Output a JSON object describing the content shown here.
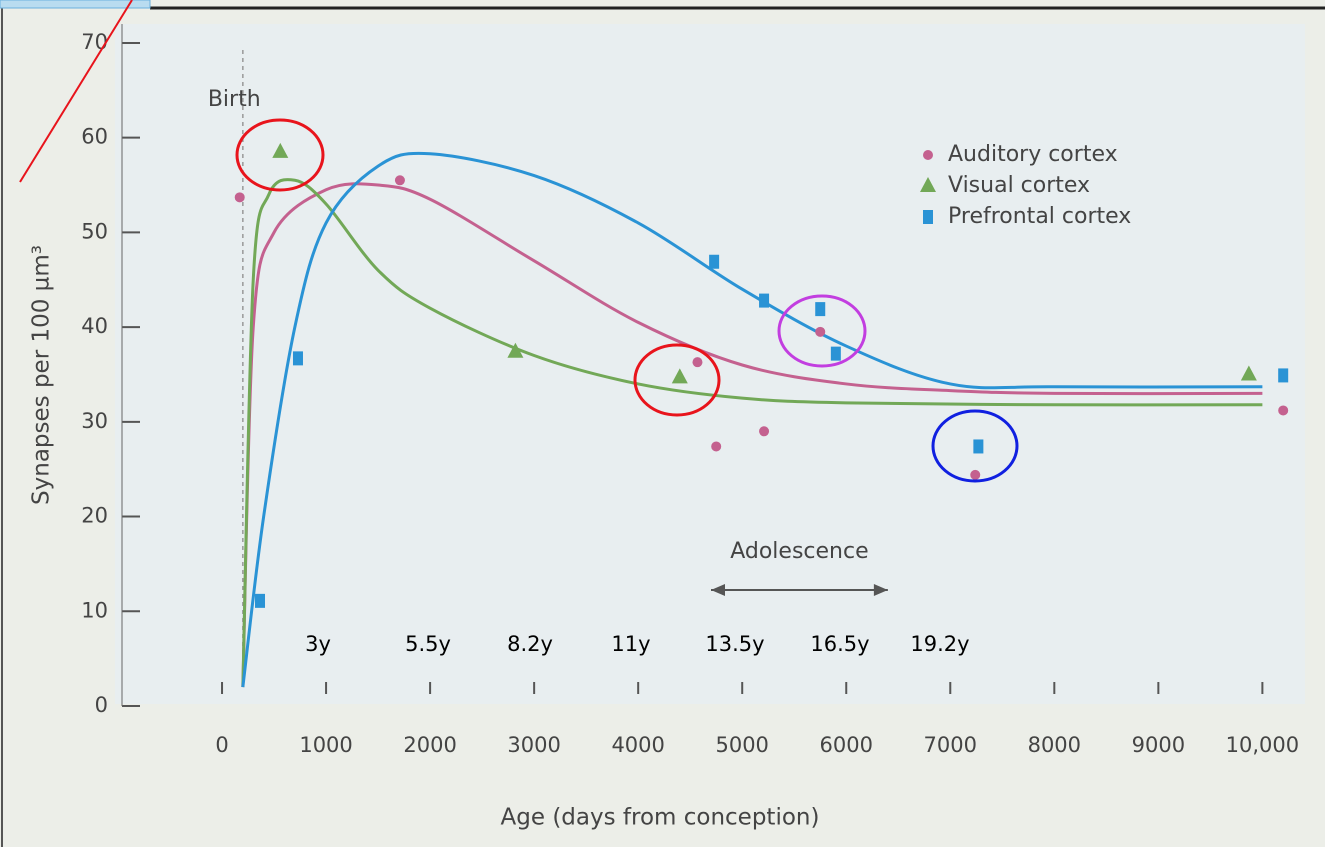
{
  "chart_data": {
    "type": "scatter",
    "xlabel": "Age (days from conception)",
    "ylabel": "Synapses per 100 µm³",
    "xlim": [
      -1000,
      10400
    ],
    "ylim": [
      0,
      72
    ],
    "xticks": [
      0,
      1000,
      2000,
      3000,
      4000,
      5000,
      6000,
      7000,
      8000,
      9000,
      {
        "value": 10000,
        "label": "10,000"
      }
    ],
    "yticks": [
      0,
      10,
      20,
      30,
      40,
      50,
      60,
      70
    ],
    "legend": "upper right",
    "annotations": [
      {
        "text": "Birth",
        "x": 200
      },
      {
        "text": "Adolescence",
        "x": [
          4700,
          6400
        ]
      }
    ],
    "series": [
      {
        "name": "Auditory cortex",
        "color": "#c4618f",
        "marker": "circle",
        "x": [
          170,
          1710,
          4570,
          4750,
          5210,
          5750,
          7240,
          10200
        ],
        "values": [
          53.7,
          55.5,
          36.3,
          27.4,
          29,
          39.5,
          24.4,
          31.2
        ],
        "fit_x": [
          200,
          300,
          500,
          1000,
          1500,
          2000,
          3000,
          4000,
          5000,
          6000,
          7000,
          8000,
          10000
        ],
        "fit_values": [
          2,
          40,
          50,
          54.5,
          55,
          53.5,
          47,
          40.5,
          36,
          34,
          33.3,
          33,
          33
        ]
      },
      {
        "name": "Visual cortex",
        "color": "#72a857",
        "marker": "triangle",
        "x": [
          560,
          2820,
          4400,
          9870
        ],
        "values": [
          58.5,
          37.4,
          34.7,
          35
        ],
        "fit_x": [
          200,
          300,
          450,
          700,
          1000,
          1500,
          2000,
          3000,
          4000,
          5000,
          6000,
          8000,
          10000
        ],
        "fit_values": [
          2,
          45,
          54,
          55.5,
          53,
          46,
          42,
          37,
          34,
          32.5,
          32,
          31.8,
          31.8
        ]
      },
      {
        "name": "Prefrontal cortex",
        "color": "#2a93d5",
        "marker": "square",
        "x": [
          365,
          730,
          4730,
          5210,
          5750,
          5900,
          7270,
          10200
        ],
        "values": [
          11.1,
          36.7,
          46.9,
          42.8,
          41.9,
          37.2,
          27.4,
          34.9
        ],
        "fit_x": [
          200,
          400,
          700,
          1000,
          1500,
          2000,
          3000,
          4000,
          5000,
          6000,
          7000,
          8000,
          10000
        ],
        "fit_values": [
          2,
          20,
          40,
          51,
          57,
          58.3,
          56,
          51,
          44,
          38,
          34,
          33.7,
          33.7
        ]
      }
    ]
  },
  "age_labels": [
    "3y",
    "5.5y",
    "8.2y",
    "11y",
    "13.5y",
    "16.5y",
    "19.2y"
  ]
}
